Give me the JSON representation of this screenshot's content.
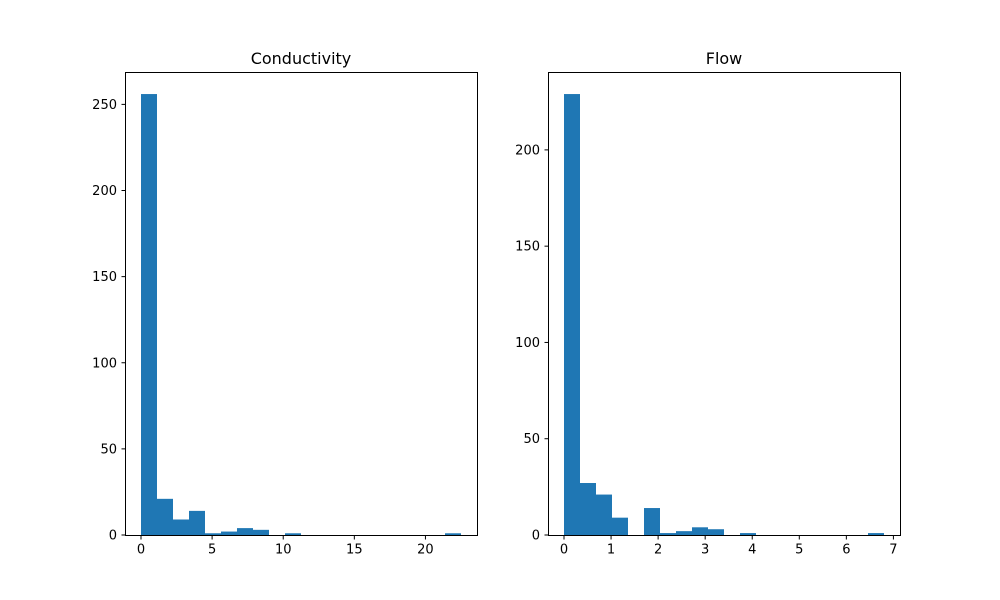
{
  "chart_data": [
    {
      "type": "bar",
      "title": "Conductivity",
      "xlabel": "",
      "ylabel": "",
      "xlim": [
        -1.125,
        23.625
      ],
      "ylim": [
        0,
        268.8
      ],
      "xticks": [
        0,
        5,
        10,
        15,
        20
      ],
      "yticks": [
        0,
        50,
        100,
        150,
        200,
        250
      ],
      "bin_edges": [
        0,
        1.125,
        2.25,
        3.375,
        4.5,
        5.625,
        6.75,
        7.875,
        9,
        10.125,
        11.25,
        12.375,
        13.5,
        14.625,
        15.75,
        16.875,
        18,
        19.125,
        20.25,
        21.375,
        22.5
      ],
      "values": [
        256,
        21,
        9,
        14,
        1,
        2,
        4,
        3,
        0,
        1,
        0,
        0,
        0,
        0,
        0,
        0,
        0,
        0,
        0,
        1
      ],
      "color": "#1f77b4",
      "grid": false
    },
    {
      "type": "bar",
      "title": "Flow",
      "xlabel": "",
      "ylabel": "",
      "xlim": [
        -0.34,
        7.14
      ],
      "ylim": [
        0,
        240.45
      ],
      "xticks": [
        0,
        1,
        2,
        3,
        4,
        5,
        6,
        7
      ],
      "yticks": [
        0,
        50,
        100,
        150,
        200
      ],
      "bin_edges": [
        0,
        0.34,
        0.68,
        1.02,
        1.36,
        1.7,
        2.04,
        2.38,
        2.72,
        3.06,
        3.4,
        3.74,
        4.08,
        4.42,
        4.76,
        5.1,
        5.44,
        5.78,
        6.12,
        6.46,
        6.8
      ],
      "values": [
        229,
        27,
        21,
        9,
        0,
        14,
        1,
        2,
        4,
        3,
        0,
        1,
        0,
        0,
        0,
        0,
        0,
        0,
        0,
        1
      ],
      "color": "#1f77b4",
      "grid": false
    }
  ]
}
